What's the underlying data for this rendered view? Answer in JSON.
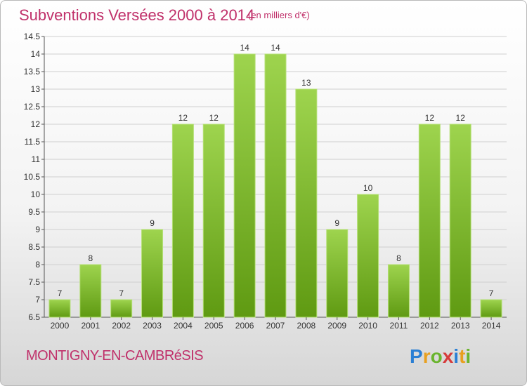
{
  "header": {
    "title": "Subventions Versées 2000 à 2014",
    "unit_note": "(en milliers d'€)"
  },
  "footer": {
    "commune": "MONTIGNY-EN-CAMBRéSIS",
    "brand": "Proxiti"
  },
  "colors": {
    "title": "#c0306a",
    "bar_light": "#9ed44e",
    "bar_dark": "#5f9a12",
    "grid": "#cfcfcf"
  },
  "chart_data": {
    "type": "bar",
    "title": "Subventions Versées 2000 à 2014",
    "subtitle": "(en milliers d'€)",
    "categories": [
      "2000",
      "2001",
      "2002",
      "2003",
      "2004",
      "2005",
      "2006",
      "2007",
      "2008",
      "2009",
      "2010",
      "2011",
      "2012",
      "2013",
      "2014"
    ],
    "values": [
      7,
      8,
      7,
      9,
      12,
      12,
      14,
      14,
      13,
      9,
      10,
      8,
      12,
      12,
      7
    ],
    "data_labels": [
      "7",
      "8",
      "7",
      "9",
      "12",
      "12",
      "14",
      "14",
      "13",
      "9",
      "10",
      "8",
      "12",
      "12",
      "7"
    ],
    "yticks": [
      "6.5",
      "7",
      "7.5",
      "8",
      "8.5",
      "9",
      "9.5",
      "10",
      "10.5",
      "11",
      "11.5",
      "12",
      "12.5",
      "13",
      "13.5",
      "14",
      "14.5"
    ],
    "ylim": [
      6.5,
      14.5
    ],
    "grid": true,
    "legend": "none"
  }
}
